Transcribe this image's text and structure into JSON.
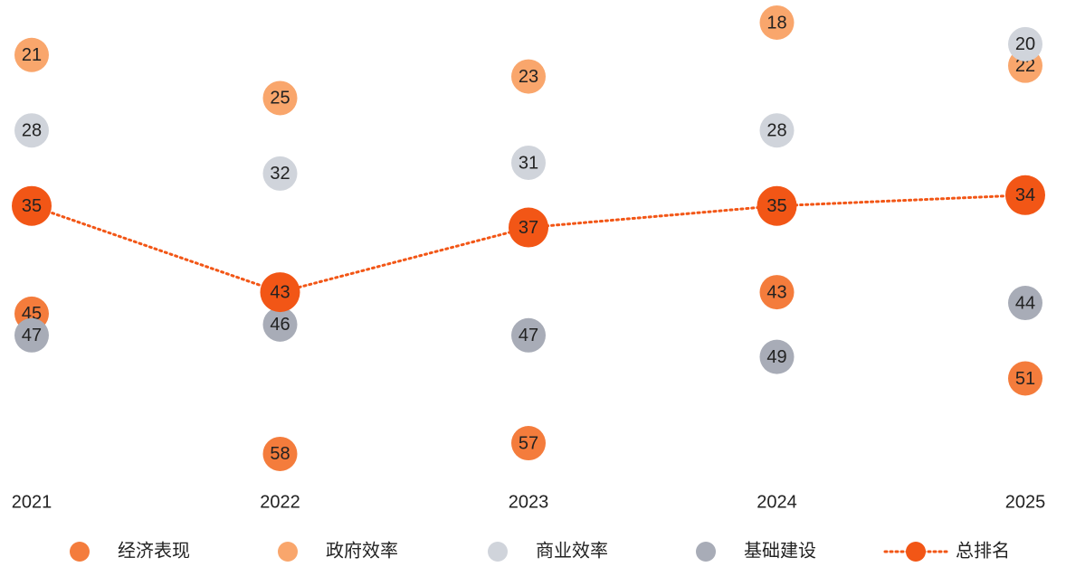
{
  "chart_data": {
    "type": "dot",
    "categories": [
      "2021",
      "2022",
      "2023",
      "2024",
      "2025"
    ],
    "ylim": [
      15,
      60
    ],
    "y_inverted": true,
    "series": [
      {
        "name": "经济表现",
        "color": "#f47c3c",
        "values": [
          45,
          58,
          57,
          43,
          51
        ]
      },
      {
        "name": "政府效率",
        "color": "#f9a66c",
        "values": [
          21,
          25,
          23,
          18,
          22
        ]
      },
      {
        "name": "商业效率",
        "color": "#d0d4db",
        "values": [
          28,
          32,
          31,
          28,
          20
        ]
      },
      {
        "name": "基础建设",
        "color": "#a8acb7",
        "values": [
          47,
          46,
          47,
          49,
          44
        ]
      },
      {
        "name": "总排名",
        "color": "#f25616",
        "line_style": "dotted",
        "values": [
          35,
          43,
          37,
          35,
          34
        ]
      }
    ]
  }
}
